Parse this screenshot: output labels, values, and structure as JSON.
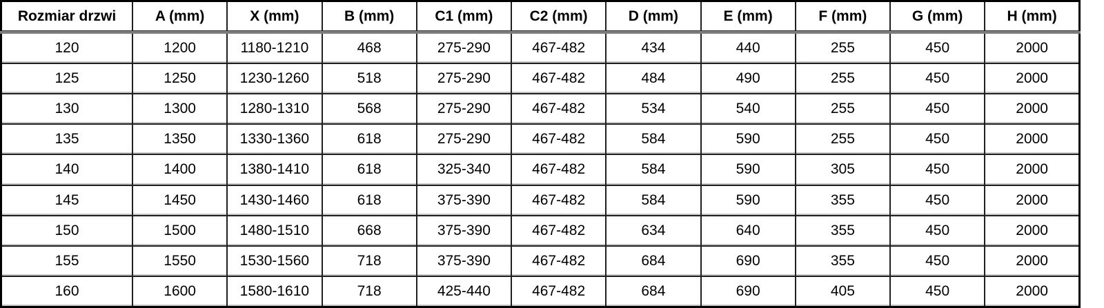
{
  "page": {
    "background": "#ffffff"
  },
  "styles": {
    "grid_line_color": "#1f1f1f",
    "outer_border_color": "#000000",
    "header_separator_color": "#7d7d7d",
    "row_separator_highlight": "#c7c7c7",
    "text_color": "#000000",
    "cell_background": "#ffffff"
  },
  "chart_data": {
    "type": "table",
    "columns": [
      "Rozmiar drzwi",
      "A (mm)",
      "X (mm)",
      "B (mm)",
      "C1 (mm)",
      "C2 (mm)",
      "D (mm)",
      "E (mm)",
      "F (mm)",
      "G (mm)",
      "H (mm)"
    ],
    "rows": [
      [
        "120",
        "1200",
        "1180-1210",
        "468",
        "275-290",
        "467-482",
        "434",
        "440",
        "255",
        "450",
        "2000"
      ],
      [
        "125",
        "1250",
        "1230-1260",
        "518",
        "275-290",
        "467-482",
        "484",
        "490",
        "255",
        "450",
        "2000"
      ],
      [
        "130",
        "1300",
        "1280-1310",
        "568",
        "275-290",
        "467-482",
        "534",
        "540",
        "255",
        "450",
        "2000"
      ],
      [
        "135",
        "1350",
        "1330-1360",
        "618",
        "275-290",
        "467-482",
        "584",
        "590",
        "255",
        "450",
        "2000"
      ],
      [
        "140",
        "1400",
        "1380-1410",
        "618",
        "325-340",
        "467-482",
        "584",
        "590",
        "305",
        "450",
        "2000"
      ],
      [
        "145",
        "1450",
        "1430-1460",
        "618",
        "375-390",
        "467-482",
        "584",
        "590",
        "355",
        "450",
        "2000"
      ],
      [
        "150",
        "1500",
        "1480-1510",
        "668",
        "375-390",
        "467-482",
        "634",
        "640",
        "355",
        "450",
        "2000"
      ],
      [
        "155",
        "1550",
        "1530-1560",
        "718",
        "375-390",
        "467-482",
        "684",
        "690",
        "355",
        "450",
        "2000"
      ],
      [
        "160",
        "1600",
        "1580-1610",
        "718",
        "425-440",
        "467-482",
        "684",
        "690",
        "405",
        "450",
        "2000"
      ]
    ]
  }
}
